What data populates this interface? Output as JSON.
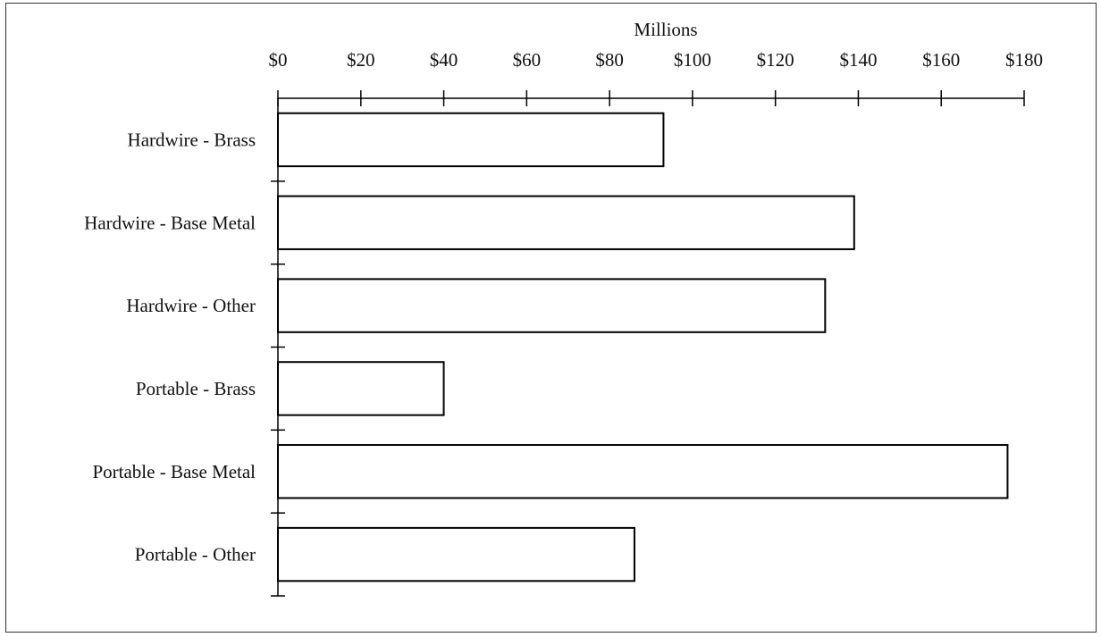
{
  "chart_data": {
    "type": "bar",
    "orientation": "horizontal",
    "title": "",
    "xlabel": "Millions",
    "ylabel": "",
    "categories": [
      "Hardwire - Brass",
      "Hardwire - Base Metal",
      "Hardwire - Other",
      "Portable - Brass",
      "Portable - Base Metal",
      "Portable - Other"
    ],
    "values": [
      93,
      139,
      132,
      40,
      176,
      86
    ],
    "x_ticks": [
      "$0",
      "$20",
      "$40",
      "$60",
      "$80",
      "$100",
      "$120",
      "$140",
      "$160",
      "$180"
    ],
    "xlim": [
      0,
      180
    ],
    "x_axis_position": "top",
    "grid": false,
    "legend": "none",
    "colors": {
      "bar_fill": "#ffffff",
      "bar_stroke": "#000000",
      "axis": "#000000"
    }
  }
}
